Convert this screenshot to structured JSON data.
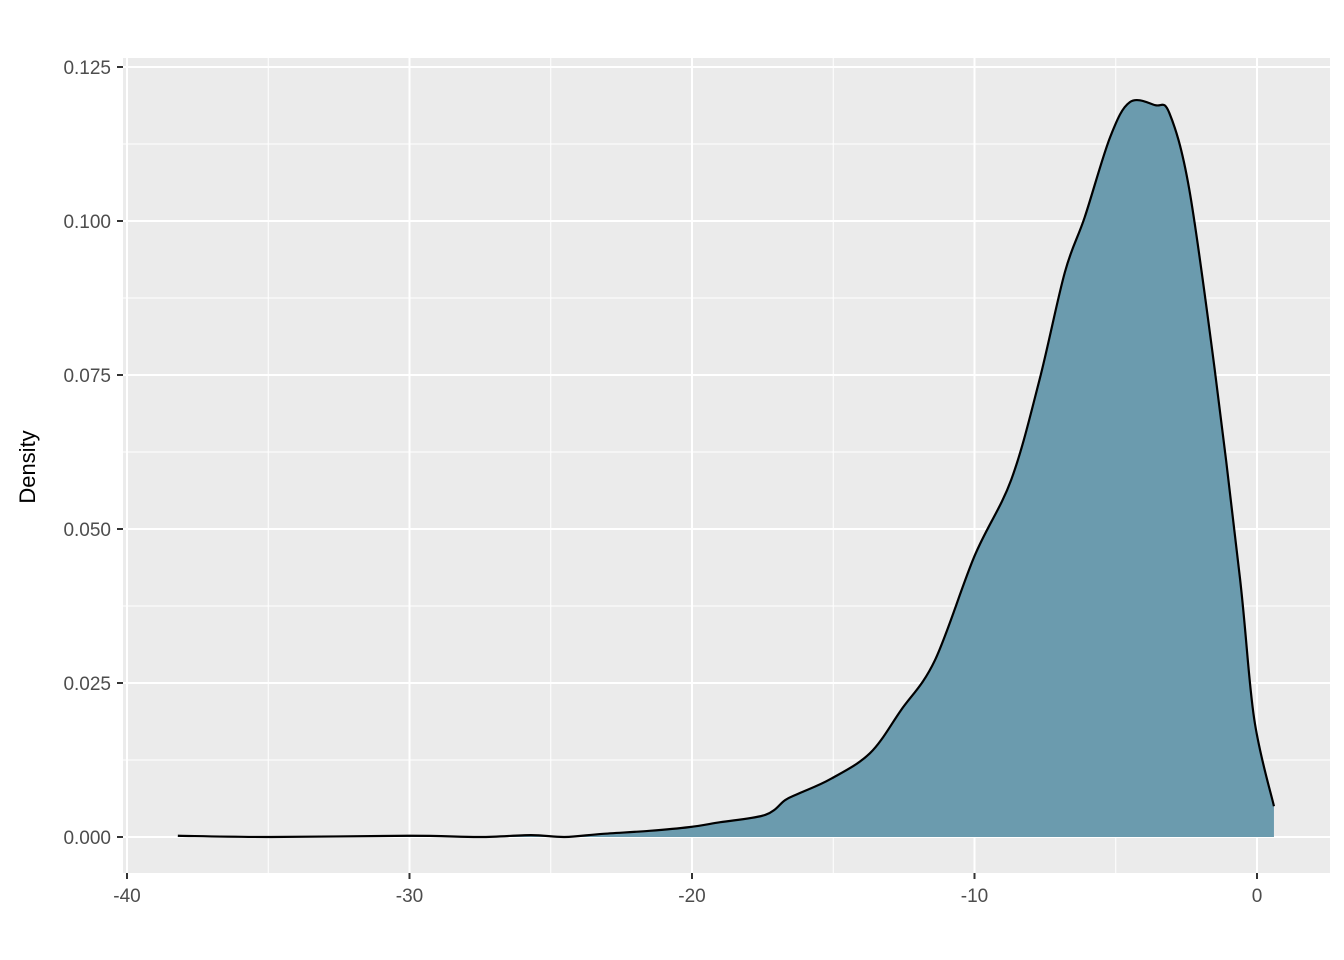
{
  "chart_data": {
    "type": "area",
    "title": "",
    "xlabel": "",
    "ylabel": "Density",
    "xlim": [
      -40,
      2.6
    ],
    "ylim": [
      -0.0062,
      0.1265
    ],
    "xticks": [
      -40,
      -30,
      -20,
      -10,
      0
    ],
    "xtick_labels": [
      "-40",
      "-30",
      "-20",
      "-10",
      "0"
    ],
    "yticks": [
      0,
      0.025,
      0.05,
      0.075,
      0.1,
      0.125
    ],
    "ytick_labels": [
      "0.000",
      "0.025",
      "0.050",
      "0.075",
      "0.100",
      "0.125"
    ],
    "grid": true,
    "fill_color": "#6b9bae",
    "line_color": "#000000",
    "panel_color": "#ebebeb",
    "x": [
      -38.2,
      -34.9,
      -30.0,
      -27.5,
      -25.7,
      -24.5,
      -23.2,
      -21.5,
      -20.1,
      -19.0,
      -17.4,
      -16.7,
      -16.2,
      -15.1,
      -13.7,
      -12.6,
      -11.4,
      -10.0,
      -8.7,
      -7.7,
      -6.8,
      -6.1,
      -5.2,
      -4.5,
      -3.6,
      -3.1,
      -2.4,
      -1.5,
      -0.6,
      -0.1,
      0.6
    ],
    "y": [
      0.0002,
      0,
      0.0002,
      0,
      0.0003,
      0,
      0.0005,
      0.001,
      0.0016,
      0.0024,
      0.0036,
      0.006,
      0.0071,
      0.0094,
      0.0136,
      0.0206,
      0.0287,
      0.0456,
      0.058,
      0.0742,
      0.0917,
      0.1006,
      0.1136,
      0.1193,
      0.1188,
      0.1175,
      0.1052,
      0.076,
      0.0419,
      0.0192,
      0.005
    ]
  }
}
